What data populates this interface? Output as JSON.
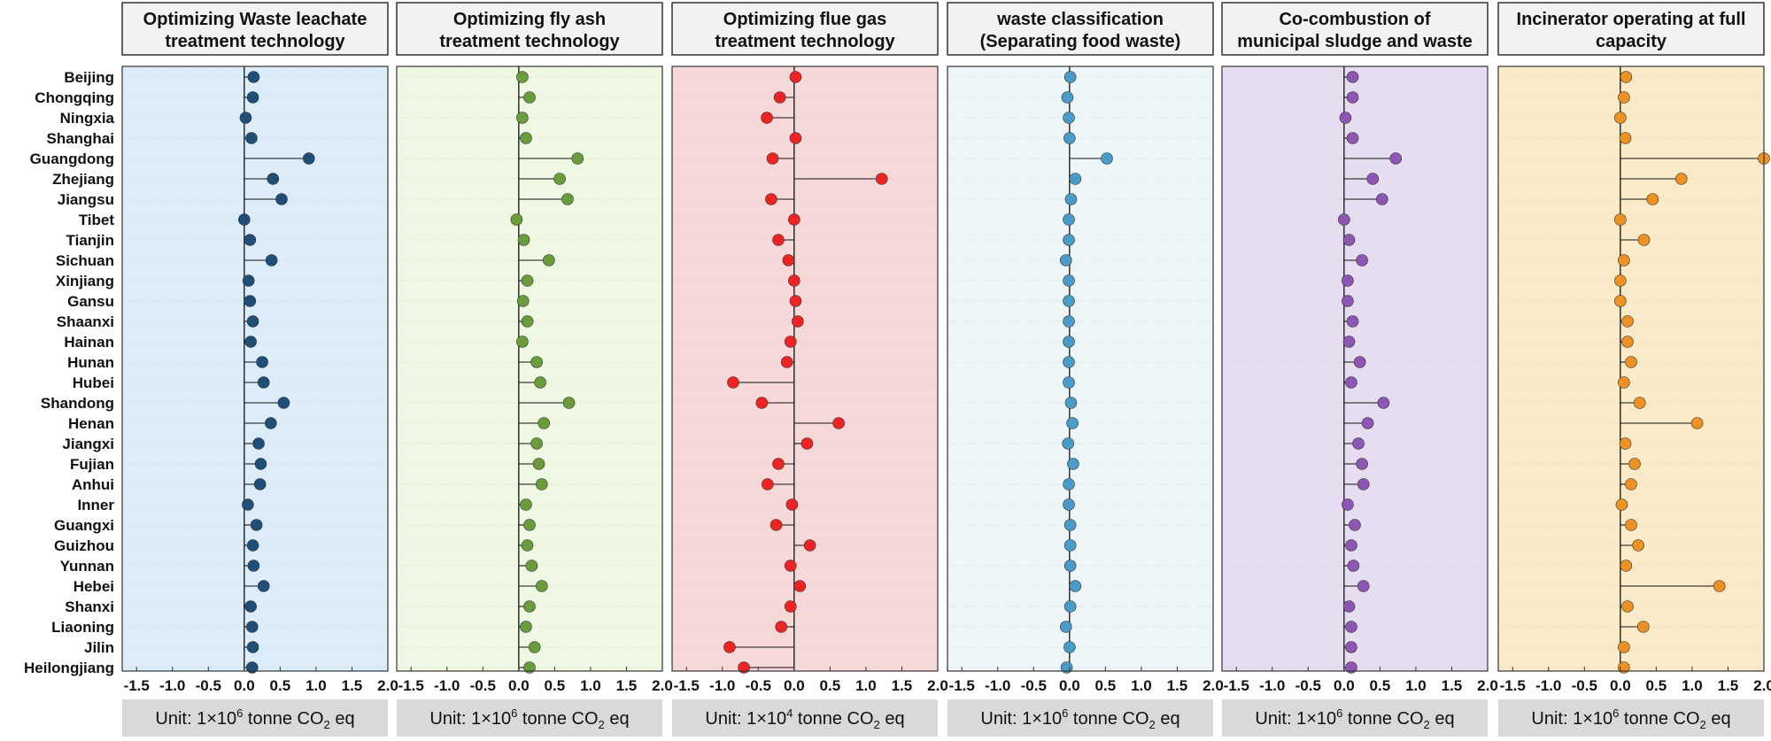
{
  "chart_data": {
    "type": "lollipop",
    "regions": [
      "Beijing",
      "Chongqing",
      "Ningxia",
      "Shanghai",
      "Guangdong",
      "Zhejiang",
      "Jiangsu",
      "Tibet",
      "Tianjin",
      "Sichuan",
      "Xinjiang",
      "Gansu",
      "Shaanxi",
      "Hainan",
      "Hunan",
      "Hubei",
      "Shandong",
      "Henan",
      "Jiangxi",
      "Fujian",
      "Anhui",
      "Inner",
      "Guangxi",
      "Guizhou",
      "Yunnan",
      "Hebei",
      "Shanxi",
      "Liaoning",
      "Jilin",
      "Heilongjiang"
    ],
    "xlim": [
      -1.7,
      2.0
    ],
    "ticks": [
      -1.5,
      -1.0,
      -0.5,
      0.0,
      0.5,
      1.0,
      1.5,
      2.0
    ],
    "tick_labels": [
      "-1.5",
      "-1.0",
      "-0.5",
      "0.0",
      "0.5",
      "1.0",
      "1.5",
      "2.0"
    ],
    "panels": [
      {
        "title_lines": [
          "Optimizing Waste leachate",
          "treatment technology"
        ],
        "unit_prefix": "Unit: 1×10",
        "unit_exp": "6",
        "unit_suffix": " tonne CO",
        "unit_sub": "2",
        "unit_tail": " eq",
        "bg_color": "#dcedf9",
        "dot_color": "#1f4e79",
        "values": [
          0.13,
          0.12,
          0.02,
          0.1,
          0.9,
          0.4,
          0.52,
          0.0,
          0.08,
          0.38,
          0.06,
          0.08,
          0.12,
          0.09,
          0.25,
          0.27,
          0.55,
          0.37,
          0.2,
          0.23,
          0.22,
          0.05,
          0.17,
          0.12,
          0.13,
          0.27,
          0.09,
          0.11,
          0.12,
          0.11
        ]
      },
      {
        "title_lines": [
          "Optimizing fly ash",
          "treatment technology"
        ],
        "unit_prefix": "Unit: 1×10",
        "unit_exp": "6",
        "unit_suffix": " tonne CO",
        "unit_sub": "2",
        "unit_tail": " eq",
        "bg_color": "#eef8e2",
        "dot_color": "#6a9c3c",
        "values": [
          0.05,
          0.15,
          0.05,
          0.1,
          0.82,
          0.57,
          0.68,
          -0.03,
          0.07,
          0.42,
          0.12,
          0.06,
          0.12,
          0.05,
          0.25,
          0.3,
          0.7,
          0.35,
          0.25,
          0.28,
          0.32,
          0.1,
          0.15,
          0.12,
          0.18,
          0.32,
          0.15,
          0.1,
          0.22,
          0.15
        ]
      },
      {
        "title_lines": [
          "Optimizing flue gas",
          "treatment technology"
        ],
        "unit_prefix": "Unit: 1×10",
        "unit_exp": "4",
        "unit_suffix": " tonne CO",
        "unit_sub": "2",
        "unit_tail": " eq",
        "bg_color": "#f7d8d8",
        "dot_color": "#ee2424",
        "values": [
          0.02,
          -0.2,
          -0.38,
          0.02,
          -0.3,
          1.22,
          -0.32,
          0.0,
          -0.22,
          -0.08,
          0.0,
          0.02,
          0.05,
          -0.05,
          -0.1,
          -0.85,
          -0.45,
          0.62,
          0.18,
          -0.22,
          -0.37,
          -0.03,
          -0.25,
          0.22,
          -0.05,
          0.08,
          -0.05,
          -0.18,
          -0.9,
          -0.7
        ]
      },
      {
        "title_lines": [
          "waste classification",
          "(Separating food waste)"
        ],
        "unit_prefix": "Unit: 1×10",
        "unit_exp": "6",
        "unit_suffix": " tonne CO",
        "unit_sub": "2",
        "unit_tail": " eq",
        "bg_color": "#eef6fa",
        "dot_color": "#4a9bc7",
        "values": [
          0.01,
          -0.03,
          -0.01,
          0.0,
          0.52,
          0.08,
          0.02,
          -0.01,
          -0.01,
          -0.05,
          -0.01,
          -0.01,
          -0.01,
          -0.01,
          -0.01,
          -0.01,
          0.02,
          0.04,
          -0.02,
          0.05,
          -0.01,
          -0.01,
          0.01,
          0.01,
          0.01,
          0.08,
          0.01,
          -0.05,
          0.0,
          -0.04
        ]
      },
      {
        "title_lines": [
          "Co-combustion of",
          "municipal sludge and waste"
        ],
        "unit_prefix": "Unit: 1×10",
        "unit_exp": "6",
        "unit_suffix": " tonne CO",
        "unit_sub": "2",
        "unit_tail": " eq",
        "bg_color": "#e6def0",
        "dot_color": "#8e55b4",
        "values": [
          0.12,
          0.12,
          0.02,
          0.12,
          0.72,
          0.4,
          0.53,
          0.0,
          0.07,
          0.25,
          0.05,
          0.05,
          0.12,
          0.07,
          0.22,
          0.1,
          0.55,
          0.33,
          0.2,
          0.25,
          0.27,
          0.05,
          0.15,
          0.1,
          0.13,
          0.27,
          0.07,
          0.1,
          0.1,
          0.1
        ]
      },
      {
        "title_lines": [
          "Incinerator operating at full",
          "capacity"
        ],
        "unit_prefix": "Unit: 1×10",
        "unit_exp": "6",
        "unit_suffix": " tonne CO",
        "unit_sub": "2",
        "unit_tail": " eq",
        "bg_color": "#faeac8",
        "dot_color": "#ec9224",
        "values": [
          0.08,
          0.05,
          0.0,
          0.07,
          2.0,
          0.85,
          0.45,
          0.0,
          0.33,
          0.05,
          0.0,
          0.0,
          0.1,
          0.1,
          0.15,
          0.05,
          0.27,
          1.07,
          0.07,
          0.2,
          0.15,
          0.02,
          0.15,
          0.25,
          0.08,
          1.38,
          0.1,
          0.32,
          0.05,
          0.05
        ]
      }
    ]
  }
}
